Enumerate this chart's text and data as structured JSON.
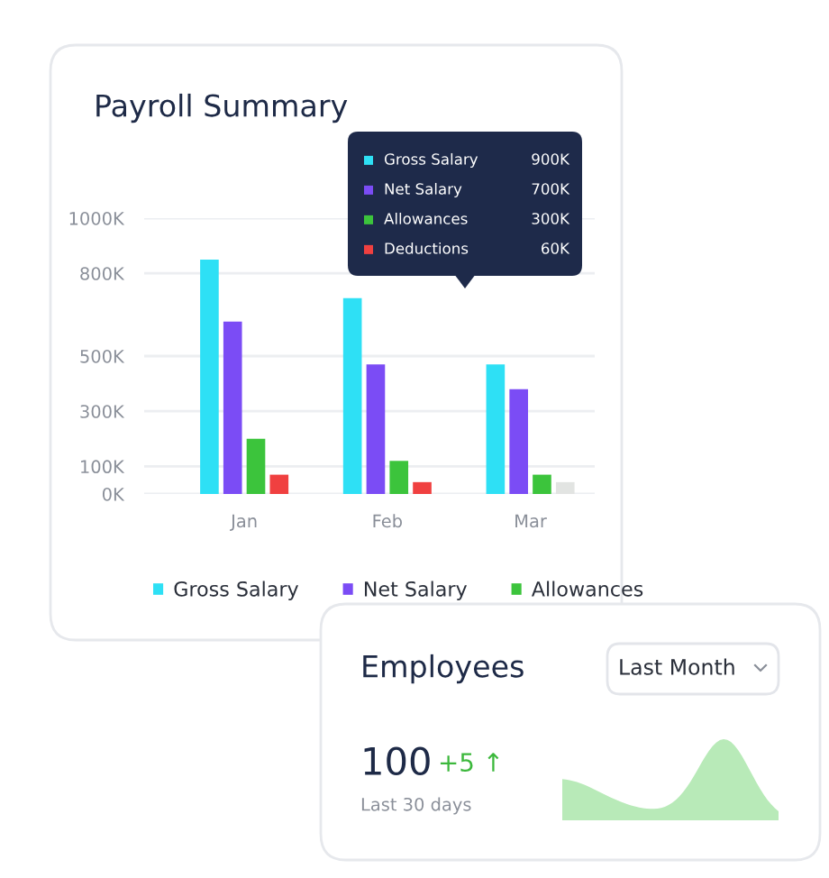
{
  "chart_data": [
    {
      "type": "bar",
      "title": "Payroll Summary",
      "categories": [
        "Jan",
        "Feb",
        "Mar"
      ],
      "series": [
        {
          "name": "Gross Salary",
          "color": "#2ee0f5",
          "values": [
            850,
            710,
            470
          ]
        },
        {
          "name": "Net Salary",
          "color": "#7b4cf5",
          "values": [
            625,
            470,
            380
          ]
        },
        {
          "name": "Allowances",
          "color": "#3cc43c",
          "values": [
            200,
            120,
            70
          ]
        },
        {
          "colors": [
            "#f04040",
            "#f04040",
            "#e2e4e2"
          ],
          "values": [
            70,
            43,
            43
          ]
        }
      ],
      "ylim": [
        0,
        1000
      ],
      "yticks": [
        {
          "value": 0,
          "label": "0K"
        },
        {
          "value": 100,
          "label": "100K"
        },
        {
          "value": 300,
          "label": "300K"
        },
        {
          "value": 500,
          "label": "500K"
        },
        {
          "value": 800,
          "label": "800K"
        },
        {
          "value": 1000,
          "label": "1000K"
        }
      ],
      "grid": "y",
      "legend": "bottom",
      "annotations": [
        "Gross Salary",
        "900K",
        "Net Salary",
        "700K",
        "Allowances",
        "300K",
        "Deductions",
        "60K"
      ]
    },
    {
      "type": "other",
      "title": "Employees",
      "annotations": [
        "Last Month",
        "100",
        "+5 ↑",
        "Last 30 days"
      ]
    }
  ]
}
